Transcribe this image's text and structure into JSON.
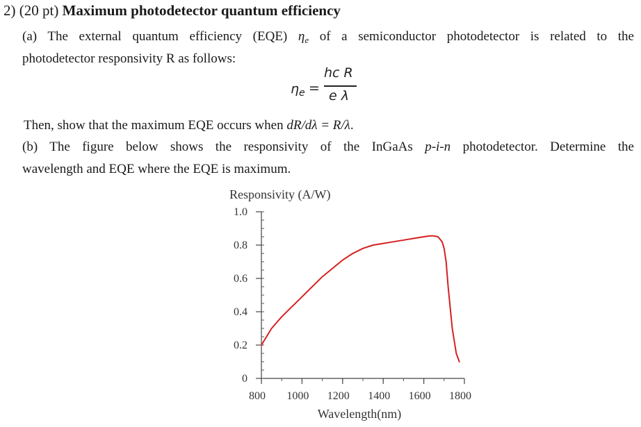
{
  "problem": {
    "number": "2)",
    "points": "(20 pt)",
    "title": "Maximum photodetector quantum efficiency"
  },
  "part_a": {
    "line1_text": "(a) The external quantum efficiency (EQE) ",
    "eta_symbol": "η",
    "eta_sub": "e",
    "line1_rest": " of a semiconductor photodetector is related to the",
    "line2": "photodetector responsivity R as follows:",
    "equation": {
      "lhs": "η",
      "lhs_sub": "e",
      "equals": "=",
      "numerator": "hc R",
      "denominator": "e λ"
    },
    "show_prefix": "Then, show that the maximum EQE occurs when ",
    "show_condition": "dR/dλ = R/λ",
    "show_suffix": "."
  },
  "part_b": {
    "line1_prefix": "(b) The figure below shows the responsivity of the InGaAs ",
    "device": "p-i-n",
    "line1_suffix": " photodetector. Determine the",
    "line2": "wavelength and EQE where the EQE is maximum."
  },
  "chart_data": {
    "type": "line",
    "title": "Responsivity (A/W)",
    "xlabel": "Wavelength(nm)",
    "ylabel": "",
    "xlim": [
      800,
      1800
    ],
    "ylim": [
      0,
      1.0
    ],
    "x_ticks": [
      "800",
      "1000",
      "1200",
      "1400",
      "1600",
      "1800"
    ],
    "x_tick_values": [
      800,
      1000,
      1200,
      1400,
      1600,
      1800
    ],
    "y_ticks": [
      "0",
      "0.2",
      "0.4",
      "0.6",
      "0.8",
      "1.0"
    ],
    "y_tick_values": [
      0,
      0.2,
      0.4,
      0.6,
      0.8,
      1.0
    ],
    "series": [
      {
        "color": "#d62020",
        "x": [
          800,
          850,
          900,
          950,
          1000,
          1050,
          1100,
          1150,
          1200,
          1250,
          1300,
          1350,
          1400,
          1450,
          1500,
          1550,
          1600,
          1630,
          1650,
          1670,
          1690,
          1700,
          1710,
          1720,
          1740,
          1760,
          1775
        ],
        "y": [
          0.2,
          0.3,
          0.37,
          0.43,
          0.49,
          0.55,
          0.61,
          0.66,
          0.71,
          0.75,
          0.78,
          0.8,
          0.81,
          0.82,
          0.83,
          0.84,
          0.85,
          0.855,
          0.855,
          0.85,
          0.82,
          0.78,
          0.7,
          0.55,
          0.3,
          0.15,
          0.1
        ]
      }
    ]
  }
}
